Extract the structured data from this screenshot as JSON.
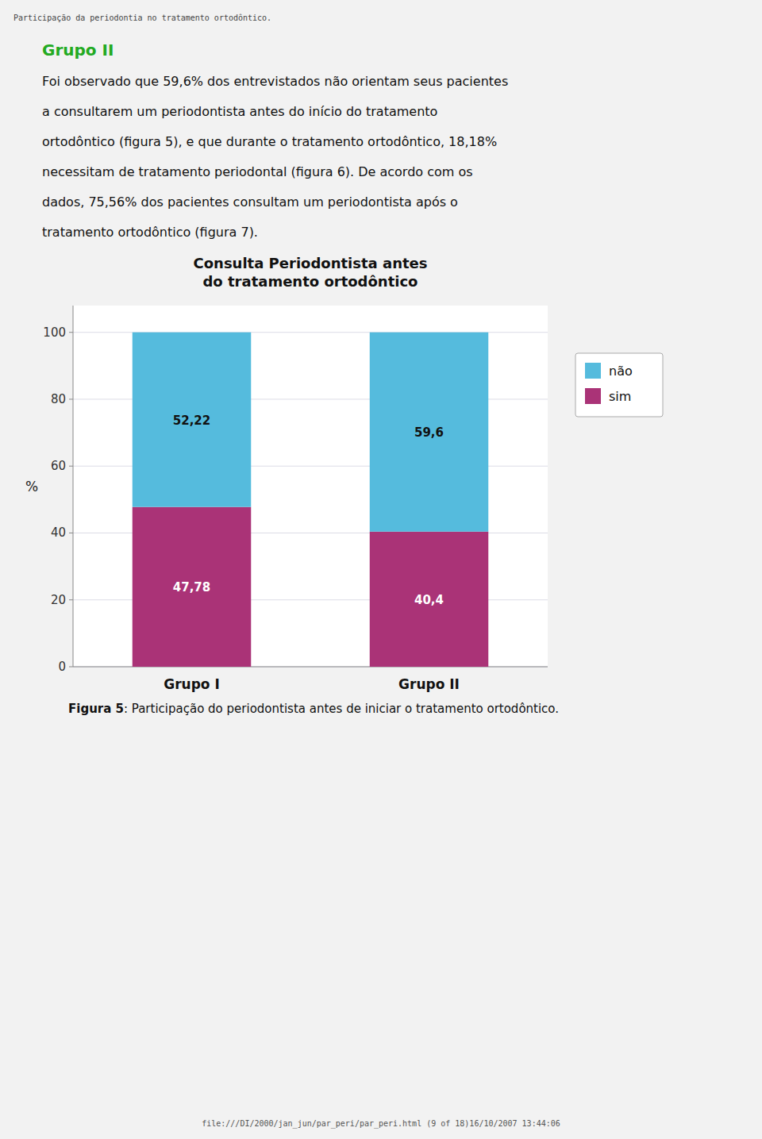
{
  "header_text": "Participação da periodontia no tratamento ortodôntico.",
  "heading": "Grupo II",
  "body_lines": [
    "Foi observado que 59,6% dos entrevistados não orientam seus pacientes",
    "a consultarem um periodontista antes do início do tratamento",
    "ortodôntico (figura 5), e que durante o tratamento ortodôntico, 18,18%",
    "necessitam de tratamento periodontal (figura 6). De acordo com os",
    "dados, 75,56% dos pacientes consultam um periodontista após o",
    "tratamento ortodôntico (figura 7)."
  ],
  "caption": [
    "Figura 5",
    ": Participação do periodontista antes de iniciar o tratamento ortodôntico."
  ],
  "footer_text": "file:///DI/2000/jan_jun/par_peri/par_peri.html (9 of 18)16/10/2007 13:44:06",
  "chart_data": {
    "type": "bar",
    "stacked": true,
    "title": "Consulta Periodontista antes\ndo tratamento ortodôntico",
    "y_label": "%",
    "categories": [
      "Grupo I",
      "Grupo II"
    ],
    "series": [
      {
        "name": "sim",
        "color": "#AA3377",
        "values": [
          47.78,
          40.4
        ],
        "value_labels": [
          "47,78",
          "40,4"
        ]
      },
      {
        "name": "não",
        "color": "#55BBDD",
        "values": [
          52.22,
          59.6
        ],
        "value_labels": [
          "52,22",
          "59,6"
        ]
      }
    ],
    "ylim": [
      0,
      108
    ],
    "yticks": [
      0,
      20,
      40,
      60,
      80,
      100
    ],
    "grid": true,
    "legend": "right",
    "data_labels": true
  }
}
